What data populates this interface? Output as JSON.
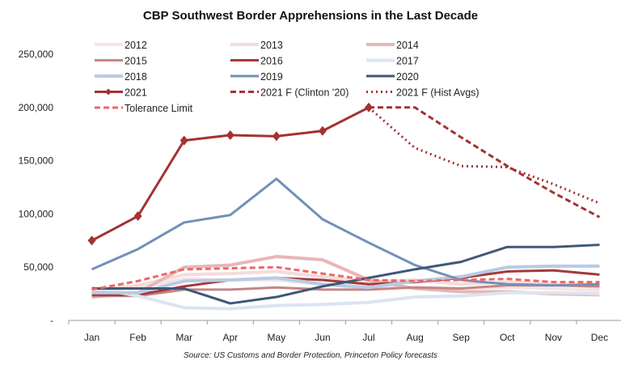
{
  "chart_data": {
    "type": "line",
    "title": "CBP Southwest Border Apprehensions in the Last Decade",
    "source": "Source: US Customs and Border Protection, Princeton Policy forecasts",
    "categories": [
      "Jan",
      "Feb",
      "Mar",
      "Apr",
      "May",
      "Jun",
      "Jul",
      "Aug",
      "Sep",
      "Oct",
      "Nov",
      "Dec"
    ],
    "ylim": [
      0,
      250000
    ],
    "yticks": [
      0,
      50000,
      100000,
      150000,
      200000,
      250000
    ],
    "ytick_labels": [
      "-",
      "50,000",
      "100,000",
      "150,000",
      "200,000",
      "250,000"
    ],
    "grid": false,
    "legend_position": "top",
    "series": [
      {
        "name": "2012",
        "color": "#f6e4e4",
        "dash": "solid",
        "values": [
          27000,
          31000,
          39000,
          38000,
          38000,
          34000,
          30000,
          31000,
          30000,
          31000,
          30000,
          28000
        ]
      },
      {
        "name": "2013",
        "color": "#f3dcdc",
        "dash": "solid",
        "values": [
          28000,
          33000,
          43000,
          44000,
          46000,
          41000,
          36000,
          38000,
          34000,
          36000,
          34000,
          31000
        ]
      },
      {
        "name": "2014",
        "color": "#e8b6b6",
        "dash": "solid",
        "values": [
          22000,
          26000,
          50000,
          52000,
          60000,
          57000,
          38000,
          30000,
          27000,
          27000,
          25000,
          24000
        ]
      },
      {
        "name": "2015",
        "color": "#c48686",
        "dash": "solid",
        "values": [
          23000,
          23000,
          29000,
          29000,
          31000,
          29000,
          29000,
          31000,
          30000,
          33000,
          33000,
          32000
        ]
      },
      {
        "name": "2016",
        "color": "#a33a3a",
        "dash": "solid",
        "values": [
          24000,
          24000,
          32000,
          38000,
          40000,
          38000,
          34000,
          36000,
          40000,
          46000,
          47000,
          43000
        ]
      },
      {
        "name": "2017",
        "color": "#dbe4f2",
        "dash": "solid",
        "values": [
          31000,
          23000,
          12000,
          11000,
          14000,
          15000,
          17000,
          22000,
          23000,
          26000,
          26000,
          25000
        ]
      },
      {
        "name": "2018",
        "color": "#b8cbe6",
        "dash": "solid",
        "values": [
          26000,
          26000,
          37000,
          38000,
          40000,
          34000,
          31000,
          37000,
          41000,
          50000,
          51000,
          51000
        ]
      },
      {
        "name": "2019",
        "color": "#7390b8",
        "dash": "solid",
        "values": [
          48000,
          67000,
          92000,
          99000,
          133000,
          95000,
          73000,
          52000,
          38000,
          34000,
          33000,
          34000
        ]
      },
      {
        "name": "2020",
        "color": "#3f5877",
        "dash": "solid",
        "values": [
          30000,
          30000,
          30000,
          16000,
          22000,
          32000,
          40000,
          48000,
          55000,
          69000,
          69000,
          71000
        ]
      },
      {
        "name": "2021",
        "color": "#a33232",
        "dash": "solid",
        "marker": "diamond",
        "values": [
          75000,
          98000,
          169000,
          174000,
          173000,
          178000,
          200000,
          null,
          null,
          null,
          null,
          null
        ]
      },
      {
        "name": "2021 F (Clinton '20)",
        "color": "#a33232",
        "dash": "dash",
        "values": [
          null,
          null,
          null,
          null,
          null,
          null,
          200000,
          200000,
          172000,
          145000,
          120000,
          97000
        ]
      },
      {
        "name": "2021 F (Hist Avgs)",
        "color": "#a33232",
        "dash": "dot",
        "values": [
          null,
          null,
          null,
          null,
          null,
          null,
          200000,
          162000,
          145000,
          144000,
          128000,
          110000
        ]
      },
      {
        "name": "Tolerance Limit",
        "color": "#f06666",
        "dash": "dash",
        "values": [
          29000,
          37000,
          48000,
          49000,
          50000,
          44000,
          38000,
          37000,
          38000,
          39000,
          36000,
          36000
        ]
      }
    ]
  }
}
